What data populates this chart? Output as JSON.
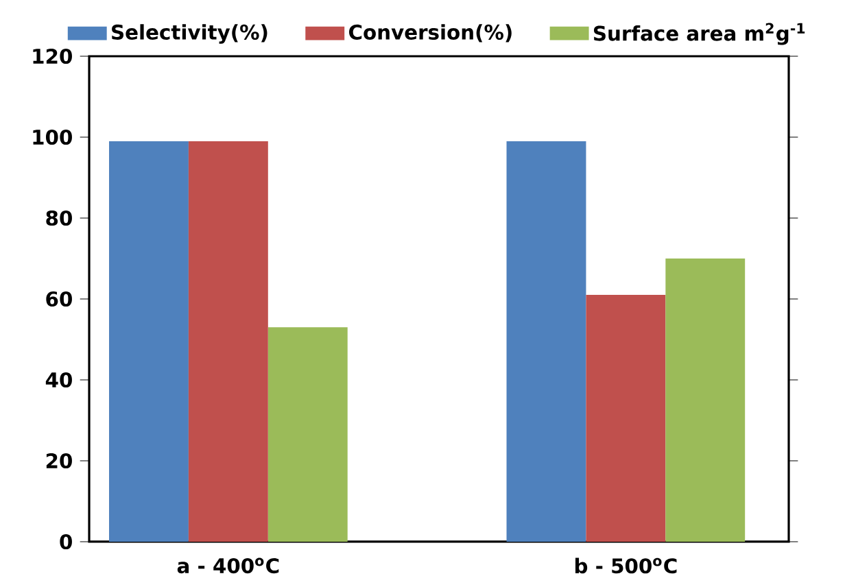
{
  "chart_data": {
    "type": "bar",
    "categories": [
      "a - 400$^{o}$C",
      "b - 500$^{o}$C"
    ],
    "series": [
      {
        "name": "Selectivity(%)",
        "color": "#4f81bd",
        "values": [
          99,
          99
        ]
      },
      {
        "name": "Conversion(%)",
        "color": "#c0504d",
        "values": [
          99,
          61
        ]
      },
      {
        "name": "Surface area m$^{2}$g$^{-1}$",
        "color": "#9bbb59",
        "values": [
          53,
          70
        ]
      }
    ],
    "ylim": [
      0,
      120
    ],
    "yticks": [
      0,
      20,
      40,
      60,
      80,
      100,
      120
    ],
    "legend": "top",
    "grid": false
  }
}
